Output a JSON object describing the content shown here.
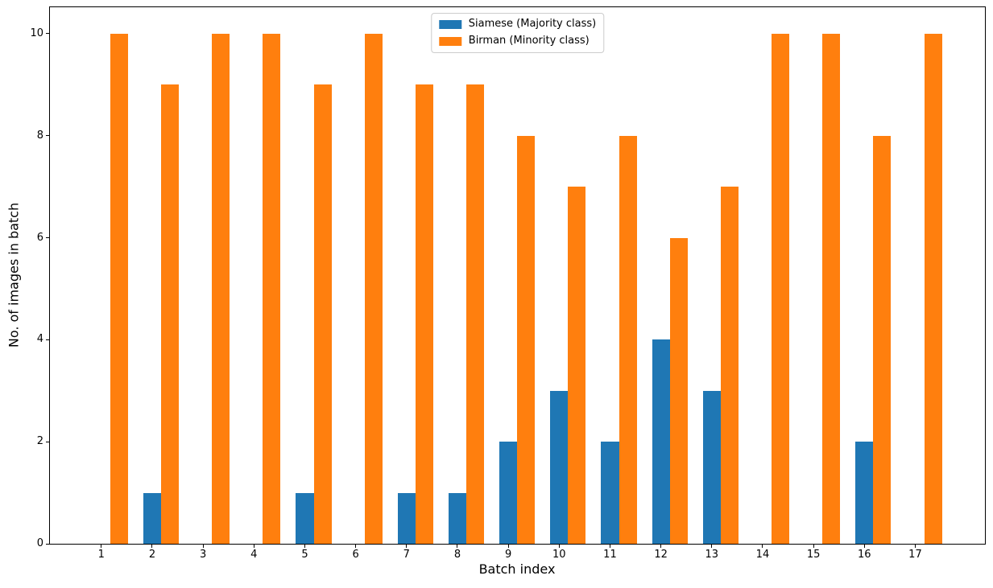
{
  "figure": {
    "background": "#ffffff"
  },
  "chart_data": {
    "type": "bar",
    "title": "",
    "xlabel": "Batch index",
    "ylabel": "No. of images in batch",
    "categories": [
      1,
      2,
      3,
      4,
      5,
      6,
      7,
      8,
      9,
      10,
      11,
      12,
      13,
      14,
      15,
      16,
      17
    ],
    "series": [
      {
        "name": "Siamese (Majority class)",
        "color": "#1f77b4",
        "values": [
          0,
          1,
          0,
          0,
          1,
          0,
          1,
          1,
          2,
          3,
          2,
          4,
          3,
          0,
          0,
          2,
          0
        ]
      },
      {
        "name": "Birman (Minority class)",
        "color": "#ff7f0e",
        "values": [
          10,
          9,
          10,
          10,
          9,
          10,
          9,
          9,
          8,
          7,
          8,
          6,
          7,
          10,
          10,
          8,
          10
        ]
      }
    ],
    "yticks": [
      0,
      2,
      4,
      6,
      8,
      10
    ],
    "xlim": [
      -0.01,
      18.37
    ],
    "ylim": [
      0,
      10.52
    ],
    "bar_width": 0.35,
    "grid": false,
    "legend_position": "upper center",
    "legend_border_color": "#cccccc",
    "axes_color": "#000000"
  }
}
